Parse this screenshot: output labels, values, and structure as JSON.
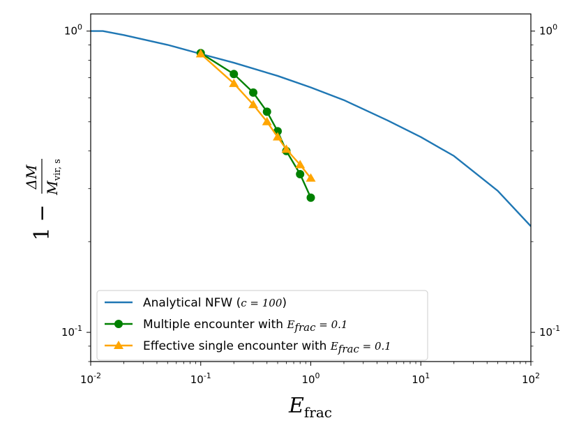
{
  "chart_data": {
    "type": "line",
    "title": "",
    "xscale": "log",
    "yscale": "log",
    "xlim": [
      0.01,
      100
    ],
    "ylim": [
      0.08,
      1.14
    ],
    "x_ticks": [
      {
        "value": 0.01,
        "base": "10",
        "exp": "-2"
      },
      {
        "value": 0.1,
        "base": "10",
        "exp": "-1"
      },
      {
        "value": 1,
        "base": "10",
        "exp": "0"
      },
      {
        "value": 10,
        "base": "10",
        "exp": "1"
      },
      {
        "value": 100,
        "base": "10",
        "exp": "2"
      }
    ],
    "y_ticks": [
      {
        "value": 0.1,
        "base": "10",
        "exp": "-1"
      },
      {
        "value": 1,
        "base": "10",
        "exp": "0"
      }
    ],
    "xlabel": {
      "main": "E",
      "sub": "frac"
    },
    "ylabel": {
      "one": "1",
      "minus": "−",
      "num": "ΔM",
      "den_main": "M",
      "den_sub": "vir, s"
    },
    "series": [
      {
        "name": "Analytical NFW",
        "legend_prefix": "Analytical NFW (",
        "legend_math": "c = 100",
        "legend_suffix": ")",
        "color": "#1f77b4",
        "marker": "none",
        "x": [
          0.01,
          0.0129,
          0.02,
          0.05,
          0.1,
          0.2,
          0.5,
          1,
          2,
          5,
          10,
          20,
          50,
          100
        ],
        "y": [
          1.0,
          1.0,
          0.97,
          0.9,
          0.84,
          0.785,
          0.71,
          0.65,
          0.59,
          0.505,
          0.445,
          0.385,
          0.295,
          0.225
        ]
      },
      {
        "name": "Multiple encounter",
        "legend_prefix": "Multiple encounter with ",
        "legend_math": "E",
        "legend_sub": "frac",
        "legend_eq": " = 0.1",
        "color": "#008000",
        "marker": "circle",
        "x": [
          0.1,
          0.2,
          0.3,
          0.4,
          0.5,
          0.6,
          0.8,
          1.0
        ],
        "y": [
          0.845,
          0.72,
          0.625,
          0.54,
          0.465,
          0.4,
          0.335,
          0.28
        ]
      },
      {
        "name": "Effective single encounter",
        "legend_prefix": "Effective single encounter with ",
        "legend_math": "E",
        "legend_sub": "frac",
        "legend_eq": " = 0.1",
        "color": "#ffa500",
        "marker": "triangle",
        "x": [
          0.1,
          0.2,
          0.3,
          0.4,
          0.5,
          0.6,
          0.8,
          1.0
        ],
        "y": [
          0.84,
          0.67,
          0.57,
          0.5,
          0.445,
          0.405,
          0.36,
          0.325
        ]
      }
    ],
    "legend_position": "lower-left"
  }
}
